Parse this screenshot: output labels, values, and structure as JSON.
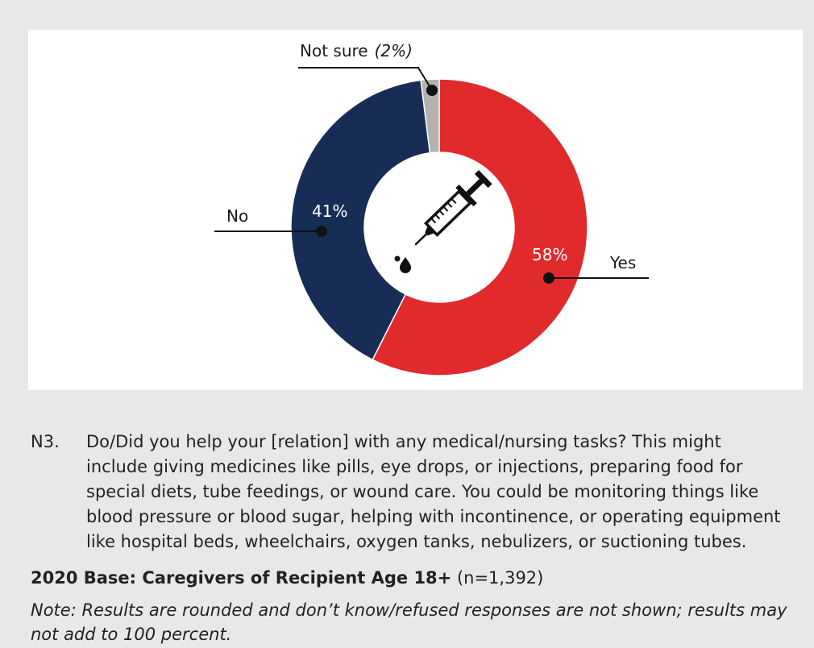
{
  "theme": {
    "background": "#e8e8e6",
    "panel": "#ffffff",
    "text": "#222222"
  },
  "chart_data": {
    "type": "pie",
    "donut": true,
    "categories": [
      "Yes",
      "No",
      "Not sure"
    ],
    "values": [
      58,
      41,
      2
    ],
    "value_labels": [
      "58%",
      "41%",
      "(2%)"
    ],
    "colors": [
      "#e12a2b",
      "#172d55",
      "#b5b1ac"
    ],
    "center_icon": "syringe-icon"
  },
  "caption": {
    "question_id": "N3.",
    "question_lines": [
      "Do/Did you help your [relation] with any medical/nursing tasks? This might",
      "include giving medicines like pills, eye drops, or injections, preparing food for",
      "special diets, tube feedings, or wound care. You could be monitoring things like",
      "blood pressure or blood sugar, helping with incontinence, or operating equipment",
      "like hospital beds, wheelchairs, oxygen tanks, nebulizers, or suctioning tubes."
    ],
    "base_label": "2020 Base: Caregivers of Recipient Age 18+",
    "base_n": "(n=1,392)",
    "note_lines": [
      "Note: Results are rounded and don’t know/refused responses are not shown; results may",
      "not add to 100 percent."
    ]
  }
}
